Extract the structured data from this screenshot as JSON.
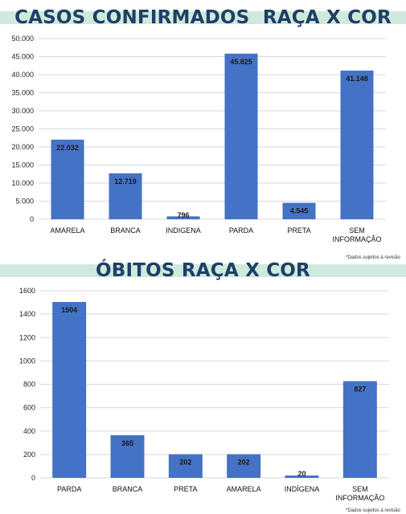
{
  "chart_data": [
    {
      "type": "bar",
      "title": "CASOS CONFIRMADOS  RAÇA X COR",
      "categories": [
        "AMARELA",
        "BRANCA",
        "INDIGENA",
        "PARDA",
        "PRETA",
        "SEM INFORMAÇÃO"
      ],
      "values": [
        22032,
        12719,
        796,
        45825,
        4545,
        41148
      ],
      "value_labels": [
        "22.032",
        "12.719",
        "796",
        "45.825",
        "4.545",
        "41.148"
      ],
      "ylim": [
        0,
        50000
      ],
      "yticks": [
        0,
        5000,
        10000,
        15000,
        20000,
        25000,
        30000,
        35000,
        40000,
        45000,
        50000
      ],
      "ytick_labels": [
        "0",
        "5.000",
        "10.000",
        "15.000",
        "20.000",
        "25.000",
        "30.000",
        "35.000",
        "40.000",
        "45.000",
        "50.000"
      ],
      "grid": true,
      "bar_color": "#4472c4",
      "note": "*Dados sujeitos à revisão"
    },
    {
      "type": "bar",
      "title": "ÓBITOS RAÇA X COR",
      "categories": [
        "PARDA",
        "BRANCA",
        "PRETA",
        "AMARELA",
        "INDÍGENA",
        "SEM INFORMAÇÃO"
      ],
      "values": [
        1504,
        365,
        202,
        202,
        20,
        827
      ],
      "value_labels": [
        "1504",
        "365",
        "202",
        "202",
        "20",
        "827"
      ],
      "ylim": [
        0,
        1600
      ],
      "yticks": [
        0,
        200,
        400,
        600,
        800,
        1000,
        1200,
        1400,
        1600
      ],
      "ytick_labels": [
        "0",
        "200",
        "400",
        "600",
        "800",
        "1000",
        "1200",
        "1400",
        "1600"
      ],
      "grid": true,
      "bar_color": "#4472c4",
      "note": "*Dados sujeitos à revisão"
    }
  ]
}
